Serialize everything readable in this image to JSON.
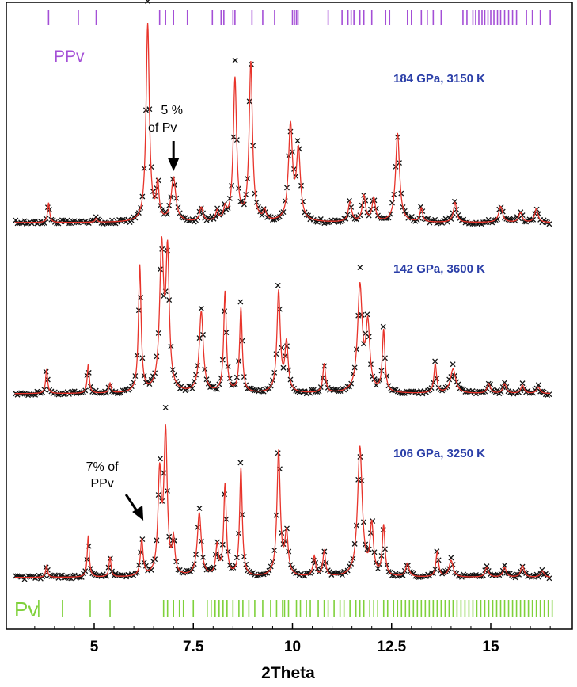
{
  "chart_data": {
    "type": "line",
    "xlabel": "2Theta",
    "xlim": [
      3.0,
      16.8
    ],
    "x_ticks": [
      "5",
      "7.5",
      "10",
      "12.5",
      "15"
    ],
    "x_tick_values": [
      5,
      7.5,
      10,
      12.5,
      15
    ],
    "phase_markers": [
      {
        "name": "PPv",
        "color": "#a44fd6",
        "positions": [
          3.85,
          4.6,
          5.05,
          6.65,
          6.8,
          7.0,
          7.35,
          7.98,
          8.2,
          8.27,
          8.5,
          8.55,
          8.98,
          9.25,
          9.55,
          10.0,
          10.05,
          10.1,
          10.14,
          10.9,
          11.25,
          11.4,
          11.48,
          11.55,
          11.7,
          11.8,
          12.0,
          12.35,
          12.45,
          12.9,
          13.0,
          13.25,
          13.4,
          13.55,
          13.75,
          14.3,
          14.4,
          14.55,
          14.62,
          14.7,
          14.78,
          14.85,
          14.93,
          15.0,
          15.08,
          15.17,
          15.25,
          15.35,
          15.45,
          15.55,
          15.65,
          15.9,
          16.05,
          16.25,
          16.5
        ]
      },
      {
        "name": "Pv",
        "color": "#7fd13b",
        "positions": [
          3.6,
          4.2,
          4.9,
          5.4,
          6.75,
          6.85,
          7.0,
          7.15,
          7.25,
          7.5,
          7.85,
          7.95,
          8.05,
          8.15,
          8.25,
          8.35,
          8.5,
          8.65,
          8.75,
          8.9,
          9.05,
          9.25,
          9.45,
          9.6,
          9.75,
          9.8,
          9.9,
          10.1,
          10.2,
          10.35,
          10.45,
          10.65,
          10.8,
          10.9,
          11.05,
          11.2,
          11.3,
          11.45,
          11.6,
          11.7,
          11.8,
          11.95,
          12.05,
          12.15,
          12.3,
          12.4,
          12.55,
          12.65,
          12.75,
          12.85,
          12.95,
          13.05,
          13.15,
          13.25,
          13.35,
          13.45,
          13.55,
          13.65,
          13.75,
          13.85,
          13.95,
          14.05,
          14.15,
          14.25,
          14.35,
          14.45,
          14.55,
          14.65,
          14.75,
          14.85,
          14.95,
          15.05,
          15.15,
          15.25,
          15.35,
          15.45,
          15.55,
          15.65,
          15.75,
          15.85,
          15.95,
          16.05,
          16.15,
          16.25,
          16.35,
          16.45,
          16.55
        ]
      }
    ],
    "series": [
      {
        "name": "184 GPa, 3150 K",
        "label_color": "#2b3fa8",
        "x_range": [
          3.0,
          16.5
        ],
        "baseline": 0.02,
        "peaks": [
          {
            "x": 3.85,
            "h": 0.1,
            "w": 0.03
          },
          {
            "x": 5.05,
            "h": 0.02,
            "w": 0.03
          },
          {
            "x": 6.35,
            "h": 1.0,
            "w": 0.05
          },
          {
            "x": 6.6,
            "h": 0.18,
            "w": 0.04
          },
          {
            "x": 7.0,
            "h": 0.22,
            "w": 0.07
          },
          {
            "x": 7.7,
            "h": 0.07,
            "w": 0.05
          },
          {
            "x": 8.1,
            "h": 0.05,
            "w": 0.04
          },
          {
            "x": 8.3,
            "h": 0.06,
            "w": 0.04
          },
          {
            "x": 8.55,
            "h": 0.72,
            "w": 0.05
          },
          {
            "x": 8.95,
            "h": 0.8,
            "w": 0.05
          },
          {
            "x": 9.3,
            "h": 0.05,
            "w": 0.04
          },
          {
            "x": 9.95,
            "h": 0.48,
            "w": 0.06
          },
          {
            "x": 10.15,
            "h": 0.35,
            "w": 0.06
          },
          {
            "x": 11.45,
            "h": 0.1,
            "w": 0.05
          },
          {
            "x": 11.8,
            "h": 0.13,
            "w": 0.05
          },
          {
            "x": 12.05,
            "h": 0.12,
            "w": 0.05
          },
          {
            "x": 12.65,
            "h": 0.45,
            "w": 0.06
          },
          {
            "x": 13.25,
            "h": 0.07,
            "w": 0.04
          },
          {
            "x": 14.1,
            "h": 0.1,
            "w": 0.05
          },
          {
            "x": 15.25,
            "h": 0.08,
            "w": 0.06
          },
          {
            "x": 15.75,
            "h": 0.05,
            "w": 0.05
          },
          {
            "x": 16.15,
            "h": 0.07,
            "w": 0.05
          }
        ]
      },
      {
        "name": "142 GPa, 3600 K",
        "label_color": "#2b3fa8",
        "x_range": [
          3.0,
          16.5
        ],
        "baseline": 0.02,
        "peaks": [
          {
            "x": 3.8,
            "h": 0.15,
            "w": 0.03
          },
          {
            "x": 4.85,
            "h": 0.18,
            "w": 0.03
          },
          {
            "x": 5.4,
            "h": 0.06,
            "w": 0.03
          },
          {
            "x": 6.15,
            "h": 0.78,
            "w": 0.04
          },
          {
            "x": 6.7,
            "h": 0.88,
            "w": 0.06
          },
          {
            "x": 6.85,
            "h": 0.82,
            "w": 0.05
          },
          {
            "x": 7.7,
            "h": 0.5,
            "w": 0.06
          },
          {
            "x": 8.3,
            "h": 0.62,
            "w": 0.04
          },
          {
            "x": 8.7,
            "h": 0.52,
            "w": 0.04
          },
          {
            "x": 9.65,
            "h": 0.62,
            "w": 0.05
          },
          {
            "x": 9.85,
            "h": 0.3,
            "w": 0.05
          },
          {
            "x": 10.8,
            "h": 0.18,
            "w": 0.04
          },
          {
            "x": 11.7,
            "h": 0.65,
            "w": 0.07
          },
          {
            "x": 11.9,
            "h": 0.4,
            "w": 0.06
          },
          {
            "x": 12.3,
            "h": 0.38,
            "w": 0.04
          },
          {
            "x": 13.6,
            "h": 0.18,
            "w": 0.04
          },
          {
            "x": 14.05,
            "h": 0.15,
            "w": 0.08
          },
          {
            "x": 14.95,
            "h": 0.06,
            "w": 0.05
          },
          {
            "x": 15.35,
            "h": 0.06,
            "w": 0.05
          },
          {
            "x": 15.8,
            "h": 0.05,
            "w": 0.05
          },
          {
            "x": 16.2,
            "h": 0.04,
            "w": 0.05
          }
        ]
      },
      {
        "name": "106 GPa, 3250 K",
        "label_color": "#2b3fa8",
        "x_range": [
          3.0,
          16.5
        ],
        "baseline": 0.02,
        "peaks": [
          {
            "x": 3.8,
            "h": 0.07,
            "w": 0.03
          },
          {
            "x": 4.85,
            "h": 0.25,
            "w": 0.03
          },
          {
            "x": 5.4,
            "h": 0.12,
            "w": 0.03
          },
          {
            "x": 6.2,
            "h": 0.22,
            "w": 0.04
          },
          {
            "x": 6.65,
            "h": 0.6,
            "w": 0.05
          },
          {
            "x": 6.8,
            "h": 0.85,
            "w": 0.05
          },
          {
            "x": 7.0,
            "h": 0.2,
            "w": 0.04
          },
          {
            "x": 7.65,
            "h": 0.38,
            "w": 0.06
          },
          {
            "x": 8.1,
            "h": 0.18,
            "w": 0.04
          },
          {
            "x": 8.3,
            "h": 0.55,
            "w": 0.04
          },
          {
            "x": 8.7,
            "h": 0.65,
            "w": 0.04
          },
          {
            "x": 9.65,
            "h": 0.75,
            "w": 0.05
          },
          {
            "x": 9.85,
            "h": 0.25,
            "w": 0.05
          },
          {
            "x": 10.55,
            "h": 0.12,
            "w": 0.04
          },
          {
            "x": 10.8,
            "h": 0.15,
            "w": 0.04
          },
          {
            "x": 11.7,
            "h": 0.78,
            "w": 0.07
          },
          {
            "x": 12.0,
            "h": 0.3,
            "w": 0.05
          },
          {
            "x": 12.3,
            "h": 0.3,
            "w": 0.04
          },
          {
            "x": 12.9,
            "h": 0.08,
            "w": 0.05
          },
          {
            "x": 13.65,
            "h": 0.15,
            "w": 0.04
          },
          {
            "x": 14.0,
            "h": 0.1,
            "w": 0.06
          },
          {
            "x": 14.9,
            "h": 0.06,
            "w": 0.05
          },
          {
            "x": 15.35,
            "h": 0.06,
            "w": 0.05
          },
          {
            "x": 15.8,
            "h": 0.07,
            "w": 0.05
          },
          {
            "x": 16.3,
            "h": 0.04,
            "w": 0.05
          }
        ]
      }
    ],
    "annotations": [
      {
        "lines": [
          "5  %",
          "of Pv"
        ],
        "panel": 0,
        "arrow_to_x": 7.0
      },
      {
        "lines": [
          "7% of",
          "PPv"
        ],
        "panel": 2,
        "arrow_to_x": 6.2
      }
    ],
    "line_color": "#e8342b",
    "marker_color": "#111111",
    "marker": "x"
  }
}
